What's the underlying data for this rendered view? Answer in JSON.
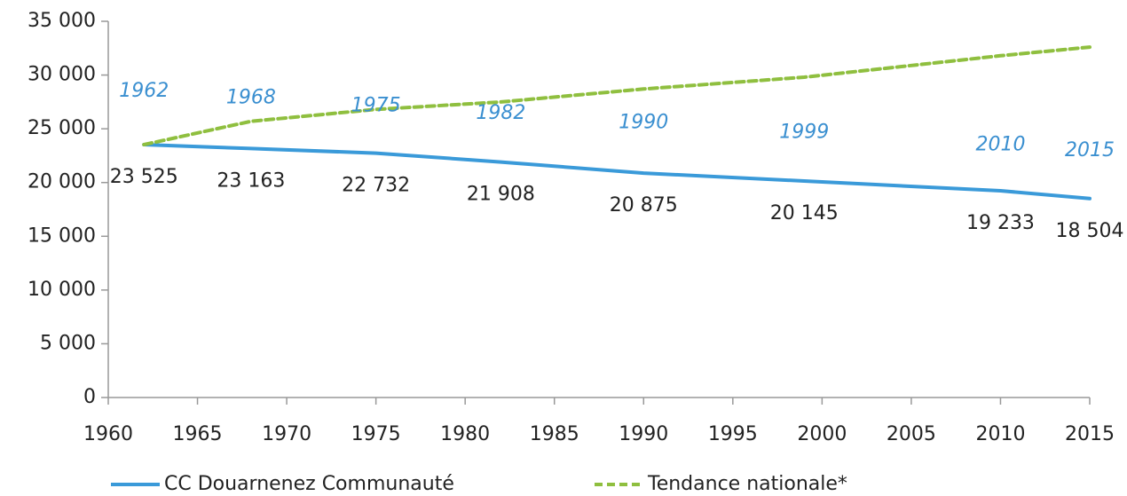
{
  "chart_data": {
    "type": "line",
    "x": [
      1962,
      1968,
      1975,
      1982,
      1990,
      1999,
      2010,
      2015
    ],
    "series": [
      {
        "name": "CC Douarnenez Communauté",
        "color": "#3a9ad9",
        "style": "solid",
        "values": [
          23525,
          23163,
          22732,
          21908,
          20875,
          20145,
          19233,
          18504
        ],
        "value_labels": [
          "23 525",
          "23 163",
          "22 732",
          "21 908",
          "20 875",
          "20 145",
          "19 233",
          "18 504"
        ]
      },
      {
        "name": "Tendance nationale*",
        "color": "#8fbf3f",
        "style": "dashed",
        "values": [
          23525,
          25700,
          26800,
          27500,
          28700,
          29800,
          31800,
          32600
        ]
      }
    ],
    "xlim": [
      1960,
      2015
    ],
    "xticks": [
      1960,
      1965,
      1970,
      1975,
      1980,
      1985,
      1990,
      1995,
      2000,
      2005,
      2010,
      2015
    ],
    "ylim": [
      0,
      35000
    ],
    "yticks": [
      0,
      {
        "value": 5000,
        "label": "5 000"
      },
      {
        "value": 10000,
        "label": "10 000"
      },
      {
        "value": 15000,
        "label": "15 000"
      },
      {
        "value": 20000,
        "label": "20 000"
      },
      {
        "value": 25000,
        "label": "25 000"
      },
      {
        "value": 30000,
        "label": "30 000"
      },
      {
        "value": 35000,
        "label": "35 000"
      }
    ],
    "grid": false,
    "legend": "bottom"
  }
}
